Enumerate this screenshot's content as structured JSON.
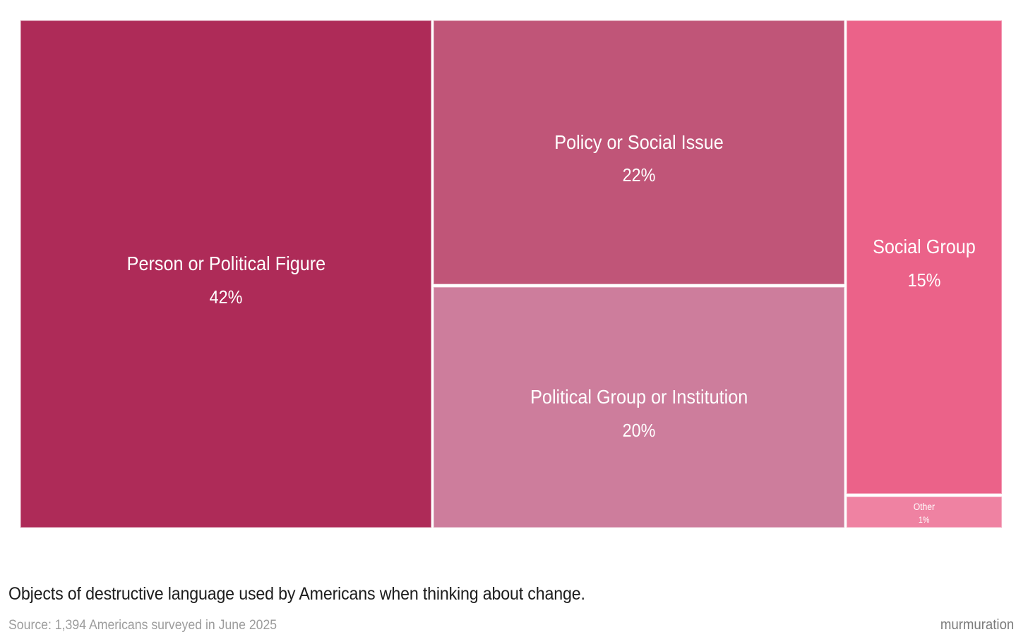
{
  "chart_data": {
    "type": "treemap",
    "title": "Objects of destructive language used by Americans when thinking about change.",
    "source_note": "Source: 1,394 Americans surveyed in June 2025",
    "attribution": "murmuration",
    "unit": "percent",
    "legend_position": "none",
    "total": 100,
    "items": [
      {
        "label": "Person or Political Figure",
        "value": 42,
        "value_label": "42%",
        "color": "#AE2B58"
      },
      {
        "label": "Policy or Social Issue",
        "value": 22,
        "value_label": "22%",
        "color": "#C05578"
      },
      {
        "label": "Political Group or Institution",
        "value": 20,
        "value_label": "20%",
        "color": "#CD7D9C"
      },
      {
        "label": "Social Group",
        "value": 15,
        "value_label": "15%",
        "color": "#EB6289"
      },
      {
        "label": "Other",
        "value": 1,
        "value_label": "1%",
        "color": "#EF82A2"
      }
    ]
  }
}
